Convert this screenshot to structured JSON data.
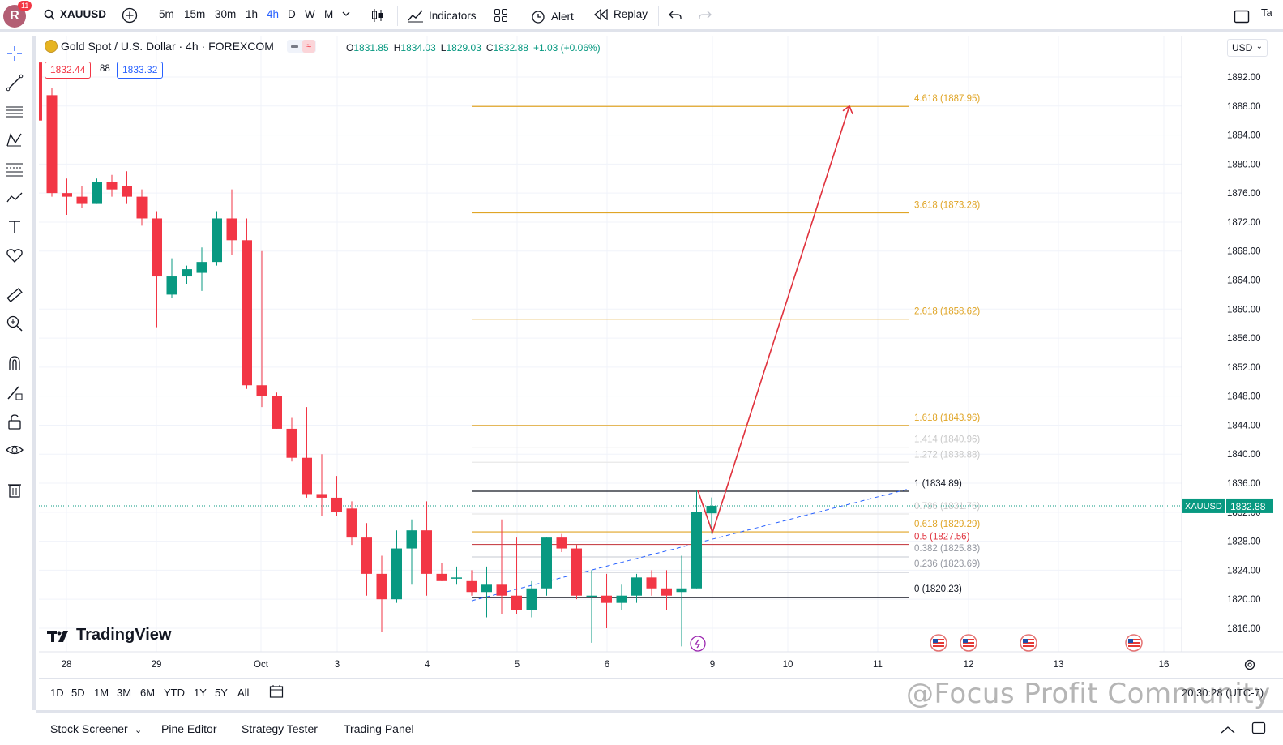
{
  "header": {
    "avatar_letter": "R",
    "notification_count": "11",
    "symbol": "XAUUSD",
    "intervals": [
      "5m",
      "15m",
      "30m",
      "1h",
      "4h",
      "D",
      "W",
      "M"
    ],
    "active_interval": "4h",
    "indicators_label": "Indicators",
    "alert_label": "Alert",
    "replay_label": "Replay",
    "right_label": "Ta"
  },
  "legend": {
    "title": "Gold Spot / U.S. Dollar · 4h · FOREXCOM",
    "open_label": "O",
    "open": "1831.85",
    "high_label": "H",
    "high": "1834.03",
    "low_label": "L",
    "low": "1829.03",
    "close_label": "C",
    "close": "1832.88",
    "change": "+1.03 (+0.06%)",
    "bid": "1832.44",
    "spread": "88",
    "ask": "1833.32"
  },
  "currency": "USD",
  "colors": {
    "up": "#089981",
    "down": "#f23645",
    "fib": "#e0a526",
    "projection": "#e0323d",
    "trend": "#2962ff"
  },
  "chart_data": {
    "type": "candlestick",
    "symbol": "XAUUSD",
    "timeframe": "4h",
    "y_range": [
      1814,
      1894
    ],
    "y_ticks": [
      "1892.00",
      "1888.00",
      "1884.00",
      "1880.00",
      "1876.00",
      "1872.00",
      "1868.00",
      "1864.00",
      "1860.00",
      "1856.00",
      "1852.00",
      "1848.00",
      "1844.00",
      "1840.00",
      "1836.00",
      "1832.00",
      "1828.00",
      "1824.00",
      "1820.00",
      "1816.00"
    ],
    "x_labels": [
      "28",
      "29",
      "Oct",
      "3",
      "4",
      "5",
      "6",
      "9",
      "10",
      "11",
      "12",
      "13",
      "16"
    ],
    "last_price_label": "XAUUSD",
    "last_price": "1832.88",
    "candles": [
      [
        1889.5,
        1890.5,
        1875.5,
        1876.0
      ],
      [
        1876.0,
        1878.0,
        1873.0,
        1875.5
      ],
      [
        1875.5,
        1877.0,
        1874.0,
        1874.5
      ],
      [
        1874.5,
        1878.0,
        1874.5,
        1877.5
      ],
      [
        1877.5,
        1878.5,
        1875.5,
        1876.5
      ],
      [
        1877.0,
        1879.0,
        1874.5,
        1875.5
      ],
      [
        1875.5,
        1876.5,
        1871.5,
        1872.5
      ],
      [
        1872.5,
        1873.5,
        1857.5,
        1864.5
      ],
      [
        1862.0,
        1867.0,
        1861.5,
        1864.5
      ],
      [
        1864.5,
        1866.0,
        1863.5,
        1865.5
      ],
      [
        1865.0,
        1868.5,
        1862.5,
        1866.5
      ],
      [
        1866.5,
        1873.5,
        1866.0,
        1872.5
      ],
      [
        1872.5,
        1876.5,
        1867.5,
        1869.5
      ],
      [
        1869.5,
        1872.5,
        1849.0,
        1849.5
      ],
      [
        1849.5,
        1868.0,
        1846.5,
        1848.0
      ],
      [
        1848.0,
        1848.5,
        1843.5,
        1843.5
      ],
      [
        1843.5,
        1845.0,
        1839.0,
        1839.5
      ],
      [
        1839.5,
        1846.5,
        1834.0,
        1834.5
      ],
      [
        1834.5,
        1840.0,
        1831.5,
        1834.0
      ],
      [
        1834.0,
        1837.0,
        1831.5,
        1832.0
      ],
      [
        1832.5,
        1833.5,
        1827.5,
        1828.5
      ],
      [
        1828.5,
        1830.5,
        1820.5,
        1823.5
      ],
      [
        1823.5,
        1826.0,
        1815.5,
        1820.0
      ],
      [
        1820.0,
        1829.5,
        1819.5,
        1827.0
      ],
      [
        1827.0,
        1831.0,
        1822.0,
        1829.5
      ],
      [
        1829.5,
        1833.5,
        1820.5,
        1823.5
      ],
      [
        1823.5,
        1825.0,
        1822.5,
        1822.5
      ],
      [
        1823.0,
        1824.5,
        1822.0,
        1823.0
      ],
      [
        1822.5,
        1824.0,
        1820.5,
        1821.0
      ],
      [
        1821.0,
        1824.5,
        1817.5,
        1822.0
      ],
      [
        1822.0,
        1831.0,
        1818.0,
        1820.5
      ],
      [
        1820.5,
        1828.5,
        1818.0,
        1818.5
      ],
      [
        1818.5,
        1822.5,
        1817.5,
        1821.5
      ],
      [
        1821.5,
        1828.5,
        1820.5,
        1828.5
      ],
      [
        1828.5,
        1829.0,
        1826.5,
        1827.0
      ],
      [
        1827.0,
        1827.5,
        1820.0,
        1820.5
      ],
      [
        1820.5,
        1824.0,
        1814.0,
        1820.5
      ],
      [
        1820.5,
        1823.5,
        1816.0,
        1819.5
      ],
      [
        1819.5,
        1822.0,
        1818.5,
        1820.5
      ],
      [
        1820.5,
        1823.5,
        1819.5,
        1823.0
      ],
      [
        1823.0,
        1824.0,
        1820.5,
        1821.5
      ],
      [
        1821.5,
        1824.0,
        1818.5,
        1820.5
      ],
      [
        1821.0,
        1826.0,
        1813.5,
        1821.5
      ],
      [
        1821.5,
        1835.0,
        1821.5,
        1832.0
      ],
      [
        1831.85,
        1834.03,
        1829.03,
        1832.88
      ]
    ],
    "fib_levels": [
      {
        "label": "4.618 (1887.95)",
        "price": 1887.95,
        "style": "gold"
      },
      {
        "label": "3.618 (1873.28)",
        "price": 1873.28,
        "style": "gold"
      },
      {
        "label": "2.618 (1858.62)",
        "price": 1858.62,
        "style": "gold"
      },
      {
        "label": "1.618 (1843.96)",
        "price": 1843.96,
        "style": "gold"
      },
      {
        "label": "1.414 (1840.96)",
        "price": 1840.96,
        "style": "faint"
      },
      {
        "label": "1.272 (1838.88)",
        "price": 1838.88,
        "style": "faint"
      },
      {
        "label": "1 (1834.89)",
        "price": 1834.89,
        "style": "black"
      },
      {
        "label": "0.786 (1831.76)",
        "price": 1831.76,
        "style": "faint"
      },
      {
        "label": "0.618 (1829.29)",
        "price": 1829.29,
        "style": "gold"
      },
      {
        "label": "0.5 (1827.56)",
        "price": 1827.56,
        "style": "red"
      },
      {
        "label": "0.382 (1825.83)",
        "price": 1825.83,
        "style": "gray"
      },
      {
        "label": "0.236 (1823.69)",
        "price": 1823.69,
        "style": "gray"
      },
      {
        "label": "0 (1820.23)",
        "price": 1820.23,
        "style": "black"
      }
    ]
  },
  "branding": {
    "logo_text": "TradingView"
  },
  "range_buttons": [
    "1D",
    "5D",
    "1M",
    "3M",
    "6M",
    "YTD",
    "1Y",
    "5Y",
    "All"
  ],
  "footer_tabs": [
    "Stock Screener",
    "Pine Editor",
    "Strategy Tester",
    "Trading Panel"
  ],
  "watermark": "@Focus Profit Community",
  "clock": "20:30:28 (UTC-7)"
}
